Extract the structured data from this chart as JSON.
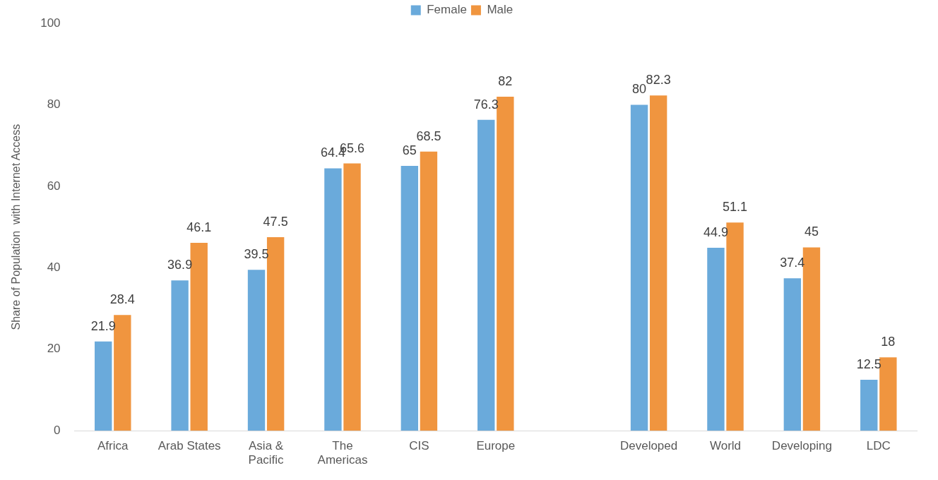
{
  "chart_data": {
    "type": "bar",
    "ylabel": "Share of Population  with Internet Access",
    "categories": [
      "Africa",
      "Arab States",
      "Asia &\nPacific",
      "The\nAmericas",
      "CIS",
      "Europe",
      null,
      "Developed",
      "World",
      "Developing",
      "LDC"
    ],
    "series": [
      {
        "name": "Female",
        "color": "#6aaadb",
        "values": [
          21.9,
          36.9,
          39.5,
          64.4,
          65,
          76.3,
          null,
          80,
          44.9,
          37.4,
          12.5
        ]
      },
      {
        "name": "Male",
        "color": "#f0953f",
        "values": [
          28.4,
          46.1,
          47.5,
          65.6,
          68.5,
          82,
          null,
          82.3,
          51.1,
          45,
          18
        ]
      }
    ],
    "ylim": [
      0,
      100
    ],
    "yticks": [
      0,
      20,
      40,
      60,
      80,
      100
    ],
    "grid": false,
    "legend": "top",
    "data_labels": true
  }
}
